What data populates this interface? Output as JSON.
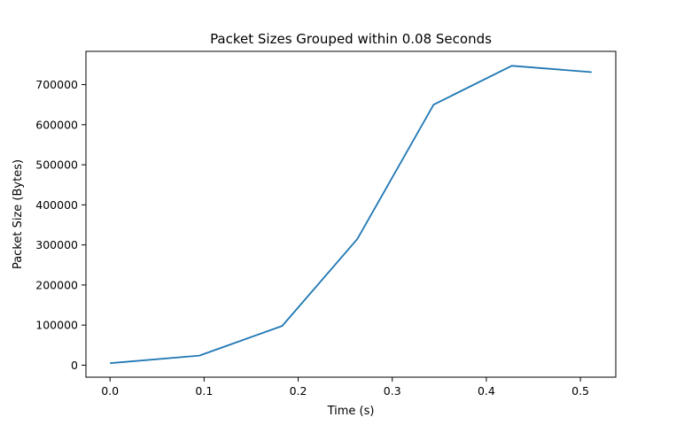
{
  "chart_data": {
    "type": "line",
    "title": "Packet Sizes Grouped within 0.08 Seconds",
    "xlabel": "Time (s)",
    "ylabel": "Packet Size (Bytes)",
    "xlim": [
      -0.0256,
      0.5376
    ],
    "ylim": [
      -30000,
      783000
    ],
    "x_ticks": [
      0.0,
      0.1,
      0.2,
      0.3,
      0.4,
      0.5
    ],
    "x_tick_labels": [
      "0.0",
      "0.1",
      "0.2",
      "0.3",
      "0.4",
      "0.5"
    ],
    "y_ticks": [
      0,
      100000,
      200000,
      300000,
      400000,
      500000,
      600000,
      700000
    ],
    "y_tick_labels": [
      "0",
      "100000",
      "200000",
      "300000",
      "400000",
      "500000",
      "600000",
      "700000"
    ],
    "grid": false,
    "series": [
      {
        "color": "#1f77b4",
        "x": [
          0.0,
          0.095,
          0.183,
          0.263,
          0.344,
          0.427,
          0.512
        ],
        "values": [
          5000,
          24000,
          98000,
          315000,
          650000,
          747000,
          731000
        ]
      }
    ]
  }
}
